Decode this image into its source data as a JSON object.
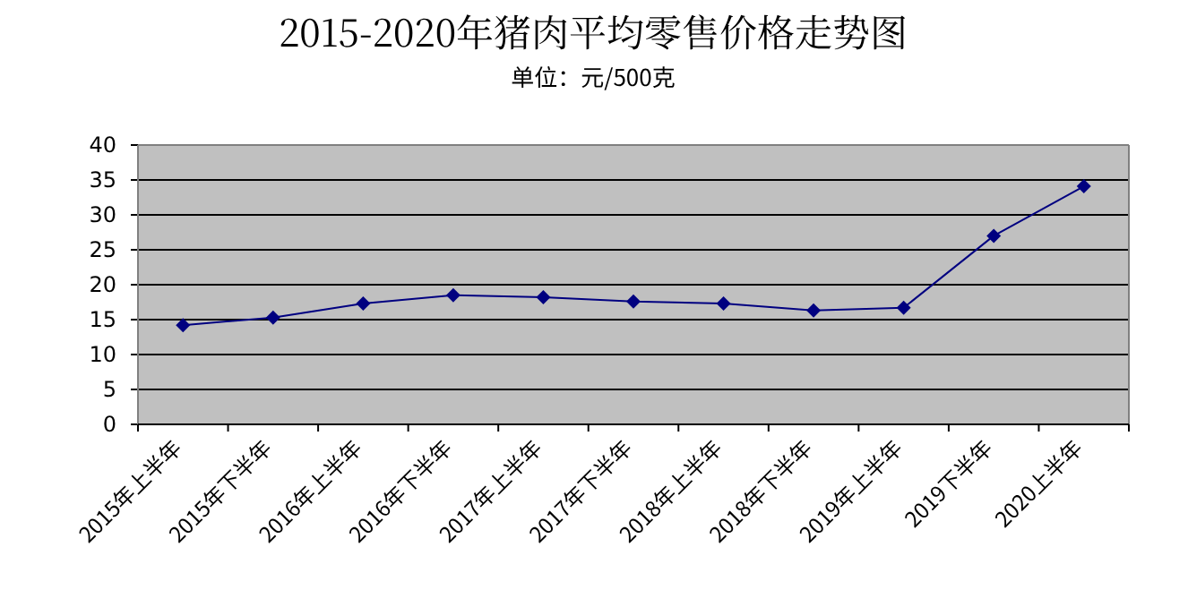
{
  "chart_data": {
    "type": "line",
    "title": "2015-2020年猪肉平均零售价格走势图",
    "subtitle": "单位：元/500克",
    "categories": [
      "2015年上半年",
      "2015年下半年",
      "2016年上半年",
      "2016年下半年",
      "2017年上半年",
      "2017年下半年",
      "2018年上半年",
      "2018年下半年",
      "2019年上半年",
      "2019下半年",
      "2020上半年"
    ],
    "series": [
      {
        "color": "#000080",
        "values": [
          14.2,
          15.3,
          17.3,
          18.5,
          18.2,
          17.6,
          17.3,
          16.3,
          16.7,
          27.0,
          34.1
        ]
      }
    ],
    "ylim": [
      0,
      40
    ],
    "yticks": [
      0,
      5,
      10,
      15,
      20,
      25,
      30,
      35,
      40
    ],
    "grid": "y",
    "marker": "diamond",
    "line_style": "solid"
  }
}
